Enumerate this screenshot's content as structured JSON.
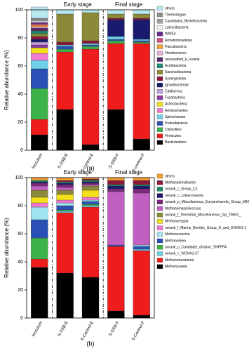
{
  "chart_data": [
    {
      "type": "bar",
      "stacked": true,
      "caption": "(a)",
      "ylabel": "Relative abundance (%)",
      "annotations": [
        "Early stage",
        "Final stage"
      ],
      "categories": [
        "Inoculum",
        "S-SSB-E",
        "S-control-E",
        "S-SSB-F",
        "S-control-F"
      ],
      "ylim": [
        0,
        100
      ],
      "yticks": [
        0,
        20,
        40,
        60,
        80,
        100
      ],
      "series": [
        {
          "name": "Bacteroidetes",
          "color": "#000000",
          "values": [
            11,
            29,
            4,
            29,
            8
          ]
        },
        {
          "name": "Firmicutes",
          "color": "#ee1c1c",
          "values": [
            11,
            41,
            68,
            47,
            68
          ]
        },
        {
          "name": "Chloroflexi",
          "color": "#3cb34a",
          "values": [
            22,
            2,
            2,
            2,
            1
          ]
        },
        {
          "name": "Proteobacteria",
          "color": "#2a4fb5",
          "values": [
            14,
            2,
            1,
            1,
            1
          ]
        },
        {
          "name": "Spirochaetae",
          "color": "#6fd0e8",
          "values": [
            6,
            1,
            1,
            2,
            1
          ]
        },
        {
          "name": "Aminicenantes",
          "color": "#f07ad0",
          "values": [
            5,
            0,
            0,
            0,
            0
          ]
        },
        {
          "name": "Actinobacteria",
          "color": "#f4e11a",
          "values": [
            4,
            0,
            0,
            0,
            0
          ]
        },
        {
          "name": "Fusobacteria",
          "color": "#8a3ca0",
          "values": [
            2,
            0,
            0,
            0,
            0
          ]
        },
        {
          "name": "Caldiserica",
          "color": "#c7a0d8",
          "values": [
            2,
            0,
            0,
            0,
            0
          ]
        },
        {
          "name": "Ignavibacteriae",
          "color": "#1a1a6e",
          "values": [
            2,
            0,
            0,
            12,
            14
          ]
        },
        {
          "name": "Synergistetes",
          "color": "#8b1a3a",
          "values": [
            2,
            2,
            2,
            1,
            1
          ]
        },
        {
          "name": "Saccharibacteria",
          "color": "#8c8a3a",
          "values": [
            2,
            20,
            20,
            3,
            3
          ]
        },
        {
          "name": "Acidobacteria",
          "color": "#1a8a6a",
          "values": [
            2,
            0,
            0,
            0,
            0
          ]
        },
        {
          "name": "unclassified_k_norank",
          "color": "#5e2a6e",
          "values": [
            2,
            0,
            0,
            0,
            0
          ]
        },
        {
          "name": "Fibrobacteres",
          "color": "#e8b0d0",
          "values": [
            1,
            0,
            0,
            0,
            0
          ]
        },
        {
          "name": "Parcubacteria",
          "color": "#f5a030",
          "values": [
            1,
            0,
            0,
            0,
            0
          ]
        },
        {
          "name": "Armatimonadetes",
          "color": "#d05080",
          "values": [
            1,
            0,
            0,
            0,
            0
          ]
        },
        {
          "name": "WWE3",
          "color": "#6a2a8a",
          "values": [
            1,
            0,
            0,
            0,
            0
          ]
        },
        {
          "name": "Latescibacteria",
          "color": "#f0f0f0",
          "values": [
            1,
            0,
            0,
            0,
            0
          ]
        },
        {
          "name": "Candidatus_Berkelbacteria",
          "color": "#a0a0a0",
          "values": [
            1,
            0,
            0,
            0,
            0
          ]
        },
        {
          "name": "Thermotogae",
          "color": "#909090",
          "values": [
            1,
            0,
            0,
            0,
            0
          ]
        },
        {
          "name": "others",
          "color": "#b8e8f0",
          "values": [
            8,
            3,
            2,
            3,
            3
          ]
        }
      ]
    },
    {
      "type": "bar",
      "stacked": true,
      "caption": "(b)",
      "ylabel": "Relative abundance (%)",
      "annotations": [
        "Early stage",
        "Final stage"
      ],
      "categories": [
        "Inoculum",
        "S-SSB-E",
        "S-Control-E",
        "S-SSB-F",
        "S-Control-F"
      ],
      "ylim": [
        0,
        100
      ],
      "yticks": [
        0,
        20,
        40,
        60,
        80,
        100
      ],
      "series": [
        {
          "name": "Methanosaeta",
          "color": "#000000",
          "values": [
            36,
            32,
            29,
            5,
            2
          ]
        },
        {
          "name": "Methanobacterium",
          "color": "#ee1c1c",
          "values": [
            6,
            43,
            50,
            46,
            46
          ]
        },
        {
          "name": "norank_c_WCHA1-57",
          "color": "#6fd0e8",
          "values": [
            0,
            1,
            1,
            0,
            1
          ]
        },
        {
          "name": "norank_p_Candidate_division_YNPFFA",
          "color": "#3cb34a",
          "values": [
            15,
            1,
            1,
            0,
            0
          ]
        },
        {
          "name": "Methanolinea",
          "color": "#2a4fb5",
          "values": [
            13,
            3,
            2,
            1,
            2
          ]
        },
        {
          "name": "Methanosarcina",
          "color": "#9ee4f0",
          "values": [
            9,
            2,
            1,
            0,
            1
          ]
        },
        {
          "name": "norank_f_Marine_Benthic_Group_D_and_DHVEG-1",
          "color": "#f07ad0",
          "values": [
            3,
            2,
            2,
            0,
            0
          ]
        },
        {
          "name": "Methanoregula",
          "color": "#f4e11a",
          "values": [
            4,
            4,
            5,
            0,
            0
          ]
        },
        {
          "name": "norank_f_Terrestrial_Miscellaneous_Gp_TMEG_",
          "color": "#8c8a3a",
          "values": [
            5,
            3,
            3,
            0,
            0
          ]
        },
        {
          "name": "Methanomassiliicoccus",
          "color": "#c060c0",
          "values": [
            3,
            2,
            1,
            38,
            37
          ]
        },
        {
          "name": "norank_p_Miscellaneous_Euryarchaeotic_Group_MEG_",
          "color": "#7a2a7a",
          "values": [
            2,
            2,
            1,
            2,
            3
          ]
        },
        {
          "name": "norank_c_Lokiarchaeota",
          "color": "#1a1a6e",
          "values": [
            1,
            1,
            1,
            2,
            2
          ]
        },
        {
          "name": "norank_c_Group_C3",
          "color": "#1a8a6a",
          "values": [
            1,
            1,
            1,
            1,
            1
          ]
        },
        {
          "name": "Methanobrevibacter",
          "color": "#8b1a3a",
          "values": [
            0,
            1,
            1,
            3,
            3
          ]
        },
        {
          "name": "others",
          "color": "#f5a030",
          "values": [
            2,
            2,
            1,
            2,
            2
          ]
        }
      ]
    }
  ]
}
